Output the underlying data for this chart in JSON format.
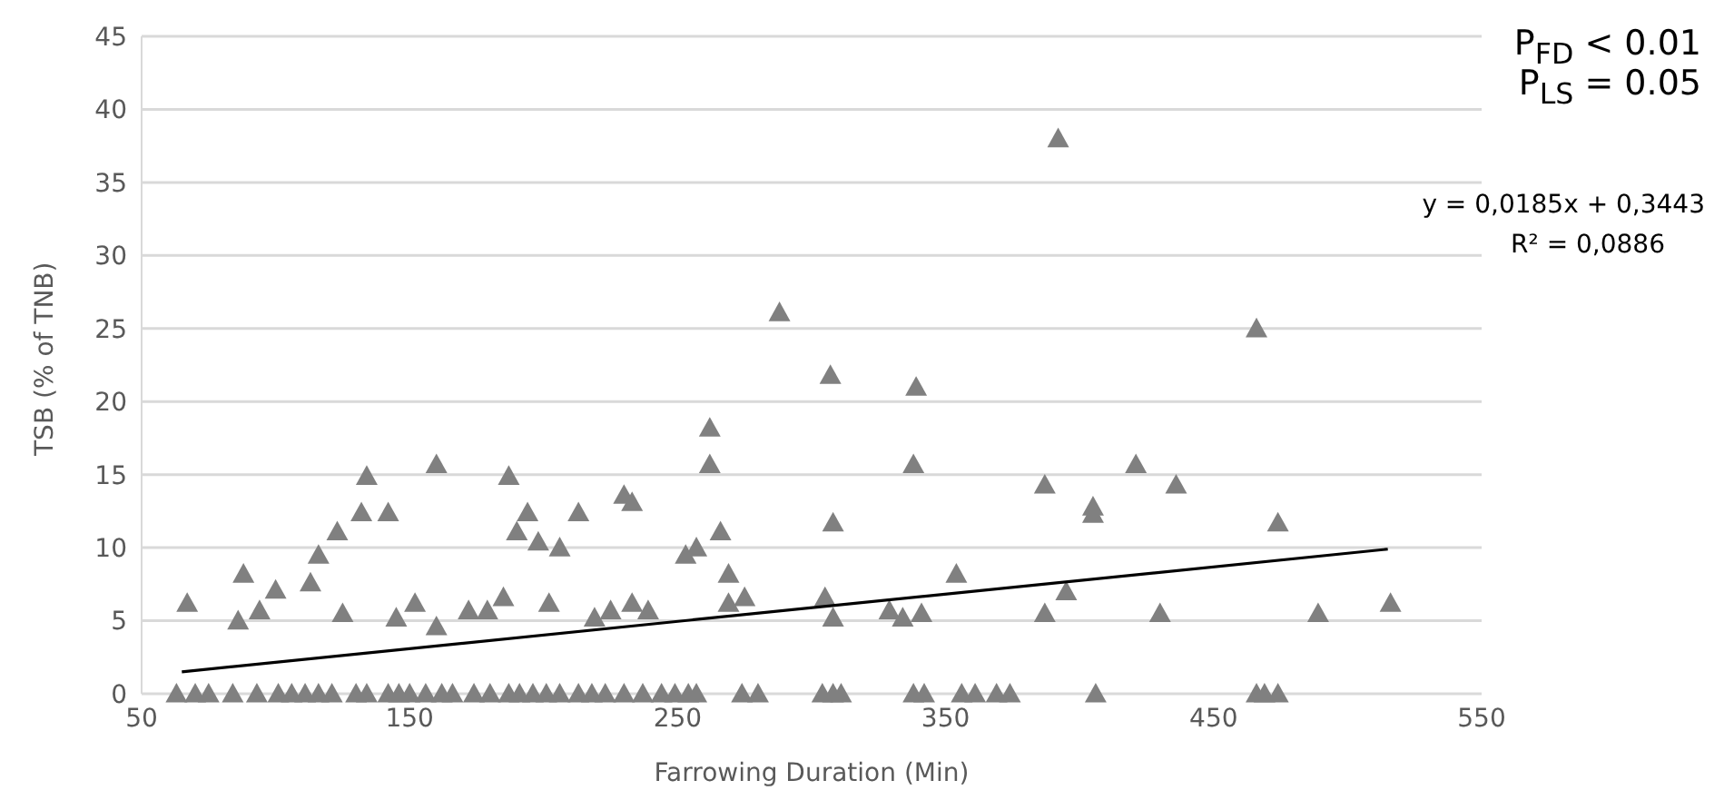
{
  "chart_data": {
    "type": "scatter",
    "xlabel": "Farrowing Duration (Min)",
    "ylabel": "TSB (% of TNB)",
    "xlim": [
      50,
      550
    ],
    "xticks": [
      50,
      150,
      250,
      350,
      450,
      550
    ],
    "ylim": [
      0,
      45
    ],
    "yticks": [
      0,
      5,
      10,
      15,
      20,
      25,
      30,
      35,
      40,
      45
    ],
    "grid": "y",
    "legend": false,
    "annotations": [
      "P$_{FD}$ < 0.01",
      "P$_{LS}$ = 0.05",
      "y = 0,0185x + 0,3443",
      "R² = 0,0886"
    ],
    "series": [
      {
        "color": "#808080",
        "marker": "triangle",
        "x": [
          67,
          86,
          88,
          94,
          100,
          113,
          116,
          123,
          125,
          132,
          134,
          142,
          145,
          152,
          160,
          160,
          172,
          179,
          185,
          187,
          190,
          194,
          198,
          202,
          206,
          213,
          219,
          225,
          230,
          233,
          233,
          239,
          253,
          257,
          262,
          262,
          266,
          269,
          269,
          275,
          288,
          305,
          307,
          308,
          308,
          329,
          334,
          339,
          338,
          341,
          354,
          387,
          395,
          387,
          405,
          405,
          421,
          430,
          436,
          466,
          474,
          489,
          516,
          392,
          63,
          70,
          75,
          84,
          93,
          101,
          106,
          111,
          116,
          121,
          130,
          134,
          142,
          146,
          150,
          156,
          162,
          166,
          174,
          180,
          187,
          191,
          196,
          201,
          206,
          213,
          218,
          223,
          230,
          237,
          244,
          249,
          254,
          257,
          274,
          280,
          304,
          308,
          311,
          338,
          342,
          356,
          361,
          369,
          374,
          406,
          466,
          469,
          474
        ],
        "values": [
          6.2,
          5.0,
          8.2,
          5.7,
          7.1,
          7.6,
          9.5,
          11.1,
          5.5,
          12.4,
          14.9,
          12.4,
          5.2,
          6.2,
          15.7,
          4.6,
          5.7,
          5.7,
          6.6,
          14.9,
          11.1,
          12.4,
          10.4,
          6.2,
          10.0,
          12.4,
          5.2,
          5.7,
          13.6,
          6.2,
          13.1,
          5.7,
          9.5,
          10.0,
          18.2,
          15.7,
          11.1,
          8.2,
          6.2,
          6.6,
          26.1,
          6.6,
          21.8,
          11.7,
          5.2,
          5.7,
          5.2,
          21.0,
          15.7,
          5.5,
          8.2,
          5.5,
          7.0,
          14.3,
          12.8,
          12.3,
          15.7,
          5.5,
          14.3,
          25.0,
          11.7,
          5.5,
          6.2,
          38.0,
          0,
          0,
          0,
          0,
          0,
          0,
          0,
          0,
          0,
          0,
          0,
          0,
          0,
          0,
          0,
          0,
          0,
          0,
          0,
          0,
          0,
          0,
          0,
          0,
          0,
          0,
          0,
          0,
          0,
          0,
          0,
          0,
          0,
          0,
          0,
          0,
          0,
          0,
          0,
          0,
          0,
          0,
          0,
          0,
          0,
          0,
          0,
          0,
          0
        ]
      },
      {
        "type": "line",
        "color": "#000000",
        "marker": "none",
        "x": [
          65,
          515
        ],
        "values": [
          1.5,
          9.9
        ]
      }
    ]
  }
}
